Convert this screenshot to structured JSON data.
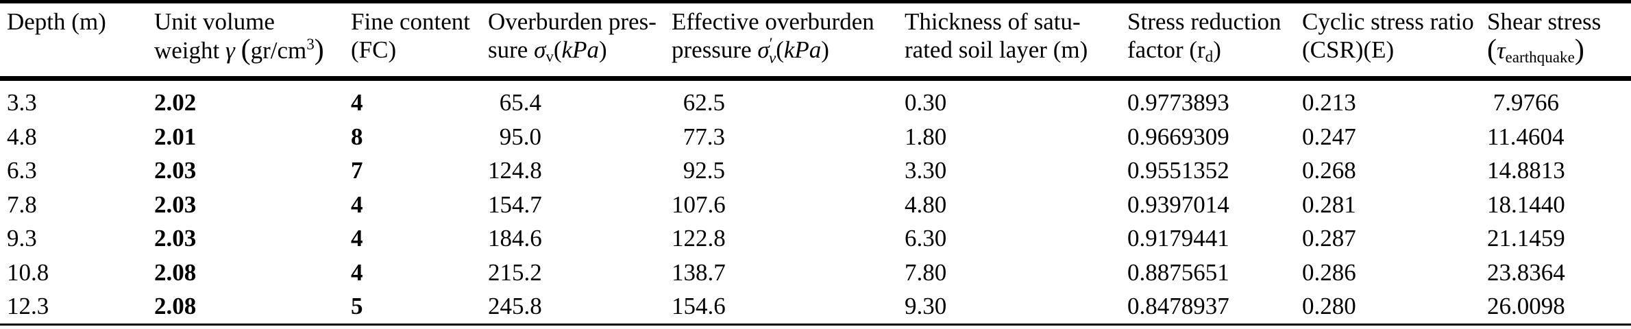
{
  "colors": {
    "text": "#000000",
    "background": "#ffffff",
    "rule": "#000000"
  },
  "table": {
    "columns": [
      {
        "id": "depth",
        "line1": [
          {
            "t": "Depth (m)"
          }
        ],
        "line2": []
      },
      {
        "id": "unit-volume-weight",
        "line1": [
          {
            "t": "Unit volume"
          }
        ],
        "line2": [
          {
            "t": "weight "
          },
          {
            "t": "γ",
            "s": "i"
          },
          {
            "t": " "
          },
          {
            "t": "(",
            "s": "big"
          },
          {
            "t": "gr/cm"
          },
          {
            "t": "3",
            "s": "sup"
          },
          {
            "t": ")",
            "s": "big"
          }
        ]
      },
      {
        "id": "fine-content",
        "line1": [
          {
            "t": "Fine content"
          }
        ],
        "line2": [
          {
            "t": "(FC)"
          }
        ]
      },
      {
        "id": "overburden-pressure",
        "line1": [
          {
            "t": "Overburden pres-"
          }
        ],
        "line2": [
          {
            "t": "sure "
          },
          {
            "t": "σ",
            "s": "i"
          },
          {
            "t": "v",
            "s": "sub"
          },
          {
            "t": "("
          },
          {
            "t": "kPa",
            "s": "i"
          },
          {
            "t": ")"
          }
        ]
      },
      {
        "id": "effective-overburden-pressure",
        "line1": [
          {
            "t": "Effective overburden"
          }
        ],
        "line2": [
          {
            "t": "pressure "
          },
          {
            "t": "σ",
            "s": "i"
          },
          {
            "t": "′",
            "s": "sup"
          },
          {
            "t": "v",
            "s": "isub"
          },
          {
            "t": "("
          },
          {
            "t": "kPa",
            "s": "i"
          },
          {
            "t": ")"
          }
        ]
      },
      {
        "id": "saturated-thickness",
        "line1": [
          {
            "t": "Thickness of satu-"
          }
        ],
        "line2": [
          {
            "t": "rated soil layer (m)"
          }
        ]
      },
      {
        "id": "stress-reduction-factor",
        "line1": [
          {
            "t": "Stress reduction"
          }
        ],
        "line2": [
          {
            "t": "factor (r"
          },
          {
            "t": "d",
            "s": "sub"
          },
          {
            "t": ")"
          }
        ]
      },
      {
        "id": "cyclic-stress-ratio",
        "line1": [
          {
            "t": "Cyclic stress ratio"
          }
        ],
        "line2": [
          {
            "t": "(CSR)(E)"
          }
        ]
      },
      {
        "id": "shear-stress",
        "line1": [
          {
            "t": "Shear stress"
          }
        ],
        "line2": [
          {
            "t": "(",
            "s": "big"
          },
          {
            "t": "τ",
            "s": "i"
          },
          {
            "t": "earthquake",
            "s": "sub"
          },
          {
            "t": ")",
            "s": "big"
          }
        ]
      }
    ],
    "rows": [
      [
        "3.3",
        "2.02",
        "4",
        "65.4",
        "62.5",
        "0.30",
        "0.9773893",
        "0.213",
        "7.9766"
      ],
      [
        "4.8",
        "2.01",
        "8",
        "95.0",
        "77.3",
        "1.80",
        "0.9669309",
        "0.247",
        "11.4604"
      ],
      [
        "6.3",
        "2.03",
        "7",
        "124.8",
        "92.5",
        "3.30",
        "0.9551352",
        "0.268",
        "14.8813"
      ],
      [
        "7.8",
        "2.03",
        "4",
        "154.7",
        "107.6",
        "4.80",
        "0.9397014",
        "0.281",
        "18.1440"
      ],
      [
        "9.3",
        "2.03",
        "4",
        "184.6",
        "122.8",
        "6.30",
        "0.9179441",
        "0.287",
        "21.1459"
      ],
      [
        "10.8",
        "2.08",
        "4",
        "215.2",
        "138.7",
        "7.80",
        "0.8875651",
        "0.286",
        "23.8364"
      ],
      [
        "12.3",
        "2.08",
        "5",
        "245.8",
        "154.6",
        "9.30",
        "0.8478937",
        "0.280",
        "26.0098"
      ]
    ]
  }
}
